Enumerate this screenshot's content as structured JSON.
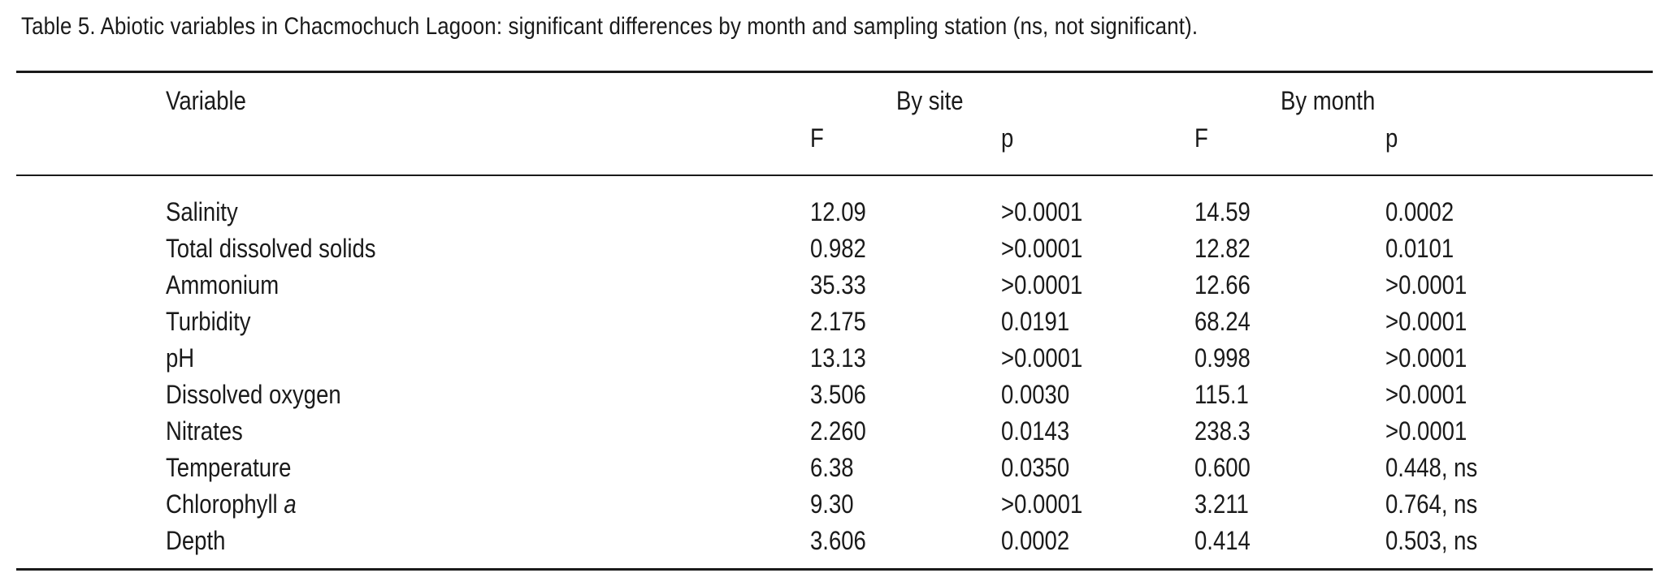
{
  "caption": "Table 5. Abiotic variables in Chacmochuch Lagoon: significant differences by month and sampling station (ns, not significant).",
  "header": {
    "variable": "Variable",
    "by_site": "By site",
    "by_month": "By month",
    "site_f": "F",
    "site_p": "p",
    "month_f": "F",
    "month_p": "p"
  },
  "rows": [
    {
      "variable": "Salinity",
      "variable_suffix": "",
      "site_f": "12.09",
      "site_p": ">0.0001",
      "month_f": "14.59",
      "month_p": "0.0002"
    },
    {
      "variable": "Total dissolved solids",
      "variable_suffix": "",
      "site_f": "0.982",
      "site_p": ">0.0001",
      "month_f": "12.82",
      "month_p": "0.0101"
    },
    {
      "variable": "Ammonium",
      "variable_suffix": "",
      "site_f": "35.33",
      "site_p": ">0.0001",
      "month_f": "12.66",
      "month_p": ">0.0001"
    },
    {
      "variable": "Turbidity",
      "variable_suffix": "",
      "site_f": "2.175",
      "site_p": "0.0191",
      "month_f": "68.24",
      "month_p": ">0.0001"
    },
    {
      "variable": "pH",
      "variable_suffix": "",
      "site_f": "13.13",
      "site_p": ">0.0001",
      "month_f": "0.998",
      "month_p": ">0.0001"
    },
    {
      "variable": "Dissolved oxygen",
      "variable_suffix": "",
      "site_f": "3.506",
      "site_p": "0.0030",
      "month_f": "115.1",
      "month_p": ">0.0001"
    },
    {
      "variable": "Nitrates",
      "variable_suffix": "",
      "site_f": "2.260",
      "site_p": "0.0143",
      "month_f": "238.3",
      "month_p": ">0.0001"
    },
    {
      "variable": "Temperature",
      "variable_suffix": "",
      "site_f": "6.38",
      "site_p": "0.0350",
      "month_f": "0.600",
      "month_p": "0.448, ns"
    },
    {
      "variable": "Chlorophyll ",
      "variable_suffix": "a",
      "site_f": "9.30",
      "site_p": ">0.0001",
      "month_f": "3.211",
      "month_p": "0.764, ns"
    },
    {
      "variable": "Depth",
      "variable_suffix": "",
      "site_f": "3.606",
      "site_p": "0.0002",
      "month_f": "0.414",
      "month_p": "0.503, ns"
    }
  ]
}
